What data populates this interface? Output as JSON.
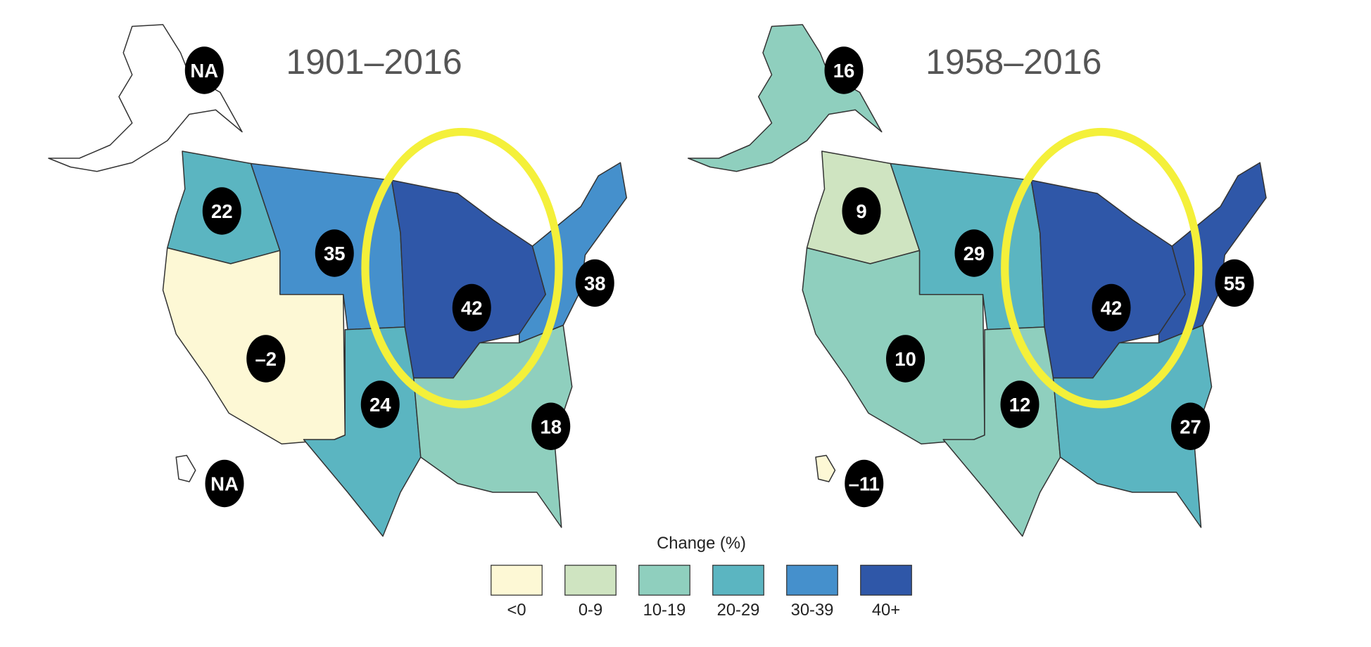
{
  "maps": [
    {
      "title": "1901–2016",
      "regions": [
        {
          "label": "NA",
          "color": "#ffffff"
        },
        {
          "label": "22",
          "color": "#5bb5c1"
        },
        {
          "label": "35",
          "color": "#4590cc"
        },
        {
          "label": "42",
          "color": "#2f57a8"
        },
        {
          "label": "38",
          "color": "#4590cc"
        },
        {
          "label": "–2",
          "color": "#fdf8d5"
        },
        {
          "label": "24",
          "color": "#5bb5c1"
        },
        {
          "label": "18",
          "color": "#8fcfbe"
        },
        {
          "label": "NA",
          "color": "#ffffff"
        }
      ]
    },
    {
      "title": "1958–2016",
      "regions": [
        {
          "label": "16",
          "color": "#8fcfbe"
        },
        {
          "label": "9",
          "color": "#cfe4c1"
        },
        {
          "label": "29",
          "color": "#5bb5c1"
        },
        {
          "label": "42",
          "color": "#2f57a8"
        },
        {
          "label": "55",
          "color": "#2f57a8"
        },
        {
          "label": "10",
          "color": "#8fcfbe"
        },
        {
          "label": "12",
          "color": "#8fcfbe"
        },
        {
          "label": "27",
          "color": "#5bb5c1"
        },
        {
          "label": "–11",
          "color": "#fdf8d5"
        }
      ]
    }
  ],
  "legend": {
    "title": "Change (%)",
    "items": [
      {
        "label": "<0",
        "color": "#fdf8d5"
      },
      {
        "label": "0-9",
        "color": "#cfe4c1"
      },
      {
        "label": "10-19",
        "color": "#8fcfbe"
      },
      {
        "label": "20-29",
        "color": "#5bb5c1"
      },
      {
        "label": "30-39",
        "color": "#4590cc"
      },
      {
        "label": "40+",
        "color": "#2f57a8"
      }
    ]
  }
}
